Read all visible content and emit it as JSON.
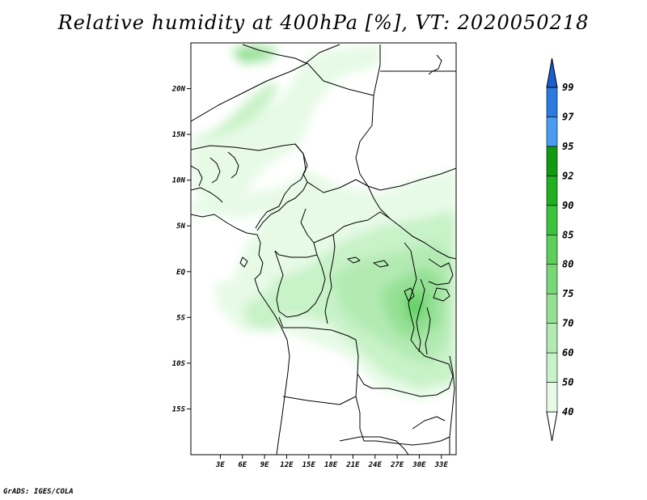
{
  "title": "Relative humidity at 400hPa [%], VT: 2020050218",
  "credit": "GrADS: IGES/COLA",
  "map": {
    "variable": "Relative humidity",
    "level": "400hPa",
    "units": "%",
    "valid_time": "2020050218",
    "lon_range": [
      -1,
      35
    ],
    "lat_range": [
      -20,
      25
    ],
    "lat_labels": [
      {
        "value": 20,
        "text": "20N"
      },
      {
        "value": 15,
        "text": "15N"
      },
      {
        "value": 10,
        "text": "10N"
      },
      {
        "value": 5,
        "text": "5N"
      },
      {
        "value": 0,
        "text": "EQ"
      },
      {
        "value": -5,
        "text": "5S"
      },
      {
        "value": -10,
        "text": "10S"
      },
      {
        "value": -15,
        "text": "15S"
      }
    ],
    "lon_labels": [
      {
        "value": 3,
        "text": "3E"
      },
      {
        "value": 6,
        "text": "6E"
      },
      {
        "value": 9,
        "text": "9E"
      },
      {
        "value": 12,
        "text": "12E"
      },
      {
        "value": 15,
        "text": "15E"
      },
      {
        "value": 18,
        "text": "18E"
      },
      {
        "value": 21,
        "text": "21E"
      },
      {
        "value": 24,
        "text": "24E"
      },
      {
        "value": 27,
        "text": "27E"
      },
      {
        "value": 30,
        "text": "30E"
      },
      {
        "value": 33,
        "text": "33E"
      }
    ]
  },
  "colorbar": {
    "levels": [
      {
        "text": "40",
        "color": "#e6fae6"
      },
      {
        "text": "50",
        "color": "#c8f2c8"
      },
      {
        "text": "60",
        "color": "#b2eab2"
      },
      {
        "text": "70",
        "color": "#96e096"
      },
      {
        "text": "75",
        "color": "#78d878"
      },
      {
        "text": "80",
        "color": "#5ccf5c"
      },
      {
        "text": "85",
        "color": "#3cc43c"
      },
      {
        "text": "90",
        "color": "#20b020"
      },
      {
        "text": "92",
        "color": "#109a10"
      },
      {
        "text": "95",
        "color": "#4a9cf0"
      },
      {
        "text": "97",
        "color": "#2a7ae0"
      },
      {
        "text": "99",
        "color": "#1a5fd0"
      }
    ],
    "bottom_color": "#ffffff",
    "top_color": "#1a5fd0"
  }
}
